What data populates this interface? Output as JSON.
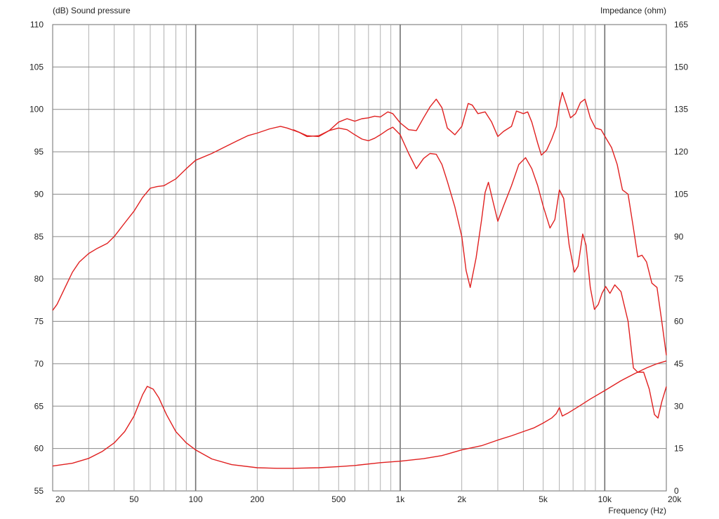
{
  "chart_data": {
    "type": "line",
    "left_axis_label": "(dB)  Sound pressure",
    "right_axis_label": "Impedance  (ohm)",
    "xlabel": "Frequency  (Hz)",
    "x_scale": "log",
    "xlim": [
      20,
      20000
    ],
    "ylim_left": [
      55,
      110
    ],
    "ylim_right": [
      0,
      165
    ],
    "grid": true,
    "x_tick_labels": [
      {
        "value": 20,
        "label": "20"
      },
      {
        "value": 50,
        "label": "50"
      },
      {
        "value": 100,
        "label": "100"
      },
      {
        "value": 200,
        "label": "200"
      },
      {
        "value": 500,
        "label": "500"
      },
      {
        "value": 1000,
        "label": "1k"
      },
      {
        "value": 2000,
        "label": "2k"
      },
      {
        "value": 5000,
        "label": "5k"
      },
      {
        "value": 10000,
        "label": "10k"
      },
      {
        "value": 20000,
        "label": "20k"
      }
    ],
    "y_left_ticks": [
      "110",
      "105",
      "100",
      "95",
      "90",
      "85",
      "80",
      "75",
      "70",
      "65",
      "60",
      "55"
    ],
    "y_right_ticks": [
      "165",
      "150",
      "135",
      "120",
      "105",
      "90",
      "75",
      "60",
      "45",
      "30",
      "15",
      "0"
    ],
    "line_color": "#e02020",
    "series": [
      {
        "axis": "left",
        "points": [
          [
            20,
            76.3
          ],
          [
            21,
            77.0
          ],
          [
            23,
            79.0
          ],
          [
            25,
            80.8
          ],
          [
            27,
            82.0
          ],
          [
            30,
            83.0
          ],
          [
            33,
            83.6
          ],
          [
            37,
            84.2
          ],
          [
            40,
            85.0
          ],
          [
            45,
            86.6
          ],
          [
            50,
            88.0
          ],
          [
            55,
            89.6
          ],
          [
            60,
            90.7
          ],
          [
            65,
            90.9
          ],
          [
            70,
            91.0
          ],
          [
            80,
            91.8
          ],
          [
            90,
            93.0
          ],
          [
            100,
            94.0
          ],
          [
            120,
            94.8
          ],
          [
            140,
            95.6
          ],
          [
            160,
            96.3
          ],
          [
            180,
            96.9
          ],
          [
            200,
            97.2
          ],
          [
            230,
            97.7
          ],
          [
            260,
            98.0
          ],
          [
            280,
            97.8
          ],
          [
            320,
            97.3
          ],
          [
            350,
            96.8
          ],
          [
            400,
            96.9
          ],
          [
            450,
            97.5
          ],
          [
            500,
            97.8
          ],
          [
            550,
            97.6
          ],
          [
            600,
            97.0
          ],
          [
            650,
            96.5
          ],
          [
            700,
            96.3
          ],
          [
            750,
            96.6
          ],
          [
            800,
            97.0
          ],
          [
            870,
            97.6
          ],
          [
            920,
            97.9
          ],
          [
            1000,
            97.0
          ],
          [
            1100,
            94.8
          ],
          [
            1200,
            93.0
          ],
          [
            1300,
            94.2
          ],
          [
            1400,
            94.8
          ],
          [
            1500,
            94.7
          ],
          [
            1600,
            93.5
          ],
          [
            1700,
            91.5
          ],
          [
            1850,
            88.5
          ],
          [
            2000,
            85.0
          ],
          [
            2100,
            81.0
          ],
          [
            2200,
            79.0
          ],
          [
            2350,
            82.5
          ],
          [
            2500,
            87.0
          ],
          [
            2600,
            90.2
          ],
          [
            2700,
            91.4
          ],
          [
            2850,
            89.0
          ],
          [
            3000,
            86.8
          ],
          [
            3200,
            88.6
          ],
          [
            3500,
            91.0
          ],
          [
            3800,
            93.5
          ],
          [
            4100,
            94.3
          ],
          [
            4400,
            93.0
          ],
          [
            4700,
            91.0
          ],
          [
            5000,
            88.6
          ],
          [
            5400,
            86.0
          ],
          [
            5700,
            87.0
          ],
          [
            6000,
            90.5
          ],
          [
            6300,
            89.5
          ],
          [
            6700,
            84.0
          ],
          [
            7100,
            80.8
          ],
          [
            7400,
            81.5
          ],
          [
            7800,
            85.3
          ],
          [
            8100,
            84.0
          ],
          [
            8500,
            79.0
          ],
          [
            8900,
            76.4
          ],
          [
            9300,
            77.0
          ],
          [
            9700,
            78.3
          ],
          [
            10100,
            79.1
          ],
          [
            10600,
            78.3
          ],
          [
            11200,
            79.3
          ],
          [
            12000,
            78.5
          ],
          [
            13000,
            75.0
          ],
          [
            13800,
            69.5
          ],
          [
            14500,
            69.0
          ],
          [
            15500,
            69.0
          ],
          [
            16500,
            67.0
          ],
          [
            17500,
            64.0
          ],
          [
            18200,
            63.6
          ],
          [
            19000,
            65.5
          ],
          [
            20000,
            67.3
          ]
        ]
      },
      {
        "axis": "left",
        "points": [
          [
            300,
            97.6
          ],
          [
            350,
            96.9
          ],
          [
            400,
            96.8
          ],
          [
            450,
            97.5
          ],
          [
            500,
            98.5
          ],
          [
            550,
            98.9
          ],
          [
            600,
            98.6
          ],
          [
            650,
            98.9
          ],
          [
            700,
            99.0
          ],
          [
            750,
            99.2
          ],
          [
            800,
            99.1
          ],
          [
            870,
            99.7
          ],
          [
            920,
            99.5
          ],
          [
            1000,
            98.4
          ],
          [
            1100,
            97.6
          ],
          [
            1200,
            97.5
          ],
          [
            1300,
            99.0
          ],
          [
            1400,
            100.3
          ],
          [
            1500,
            101.2
          ],
          [
            1600,
            100.2
          ],
          [
            1700,
            97.8
          ],
          [
            1850,
            97.0
          ],
          [
            2000,
            98.0
          ],
          [
            2150,
            100.7
          ],
          [
            2250,
            100.5
          ],
          [
            2400,
            99.5
          ],
          [
            2600,
            99.7
          ],
          [
            2800,
            98.5
          ],
          [
            3000,
            96.8
          ],
          [
            3200,
            97.4
          ],
          [
            3500,
            98.0
          ],
          [
            3700,
            99.8
          ],
          [
            4000,
            99.5
          ],
          [
            4200,
            99.7
          ],
          [
            4400,
            98.5
          ],
          [
            4700,
            96.0
          ],
          [
            4900,
            94.6
          ],
          [
            5200,
            95.2
          ],
          [
            5500,
            96.5
          ],
          [
            5800,
            98.0
          ],
          [
            6000,
            100.5
          ],
          [
            6200,
            102.0
          ],
          [
            6500,
            100.5
          ],
          [
            6800,
            99.0
          ],
          [
            7200,
            99.5
          ],
          [
            7600,
            100.8
          ],
          [
            8000,
            101.2
          ],
          [
            8500,
            99.0
          ],
          [
            9000,
            97.8
          ],
          [
            9600,
            97.6
          ],
          [
            10200,
            96.5
          ],
          [
            10800,
            95.5
          ],
          [
            11500,
            93.5
          ],
          [
            12200,
            90.5
          ],
          [
            13000,
            90.0
          ],
          [
            13800,
            86.0
          ],
          [
            14500,
            82.6
          ],
          [
            15200,
            82.8
          ],
          [
            16000,
            82.0
          ],
          [
            17000,
            79.5
          ],
          [
            18000,
            79.0
          ],
          [
            19000,
            75.0
          ],
          [
            20000,
            71.0
          ]
        ]
      },
      {
        "axis": "right",
        "points": [
          [
            20,
            8.8
          ],
          [
            25,
            9.8
          ],
          [
            30,
            11.5
          ],
          [
            35,
            14.0
          ],
          [
            40,
            17.0
          ],
          [
            45,
            21.0
          ],
          [
            50,
            26.5
          ],
          [
            55,
            34.0
          ],
          [
            58,
            37.0
          ],
          [
            62,
            36.0
          ],
          [
            66,
            33.0
          ],
          [
            72,
            27.0
          ],
          [
            80,
            21.0
          ],
          [
            90,
            17.0
          ],
          [
            100,
            14.5
          ],
          [
            120,
            11.3
          ],
          [
            150,
            9.3
          ],
          [
            200,
            8.2
          ],
          [
            250,
            8.0
          ],
          [
            300,
            8.0
          ],
          [
            400,
            8.2
          ],
          [
            500,
            8.6
          ],
          [
            600,
            9.0
          ],
          [
            800,
            10.0
          ],
          [
            1000,
            10.5
          ],
          [
            1300,
            11.4
          ],
          [
            1600,
            12.5
          ],
          [
            2000,
            14.5
          ],
          [
            2500,
            16.0
          ],
          [
            3000,
            18.0
          ],
          [
            3500,
            19.5
          ],
          [
            4000,
            21.0
          ],
          [
            4500,
            22.3
          ],
          [
            5000,
            24.0
          ],
          [
            5500,
            25.8
          ],
          [
            5800,
            27.4
          ],
          [
            6000,
            29.5
          ],
          [
            6200,
            26.5
          ],
          [
            6600,
            27.5
          ],
          [
            7500,
            30.0
          ],
          [
            8500,
            32.5
          ],
          [
            10000,
            35.5
          ],
          [
            12000,
            39.0
          ],
          [
            14000,
            41.5
          ],
          [
            16000,
            43.5
          ],
          [
            18000,
            45.0
          ],
          [
            20000,
            46.0
          ]
        ]
      }
    ]
  }
}
